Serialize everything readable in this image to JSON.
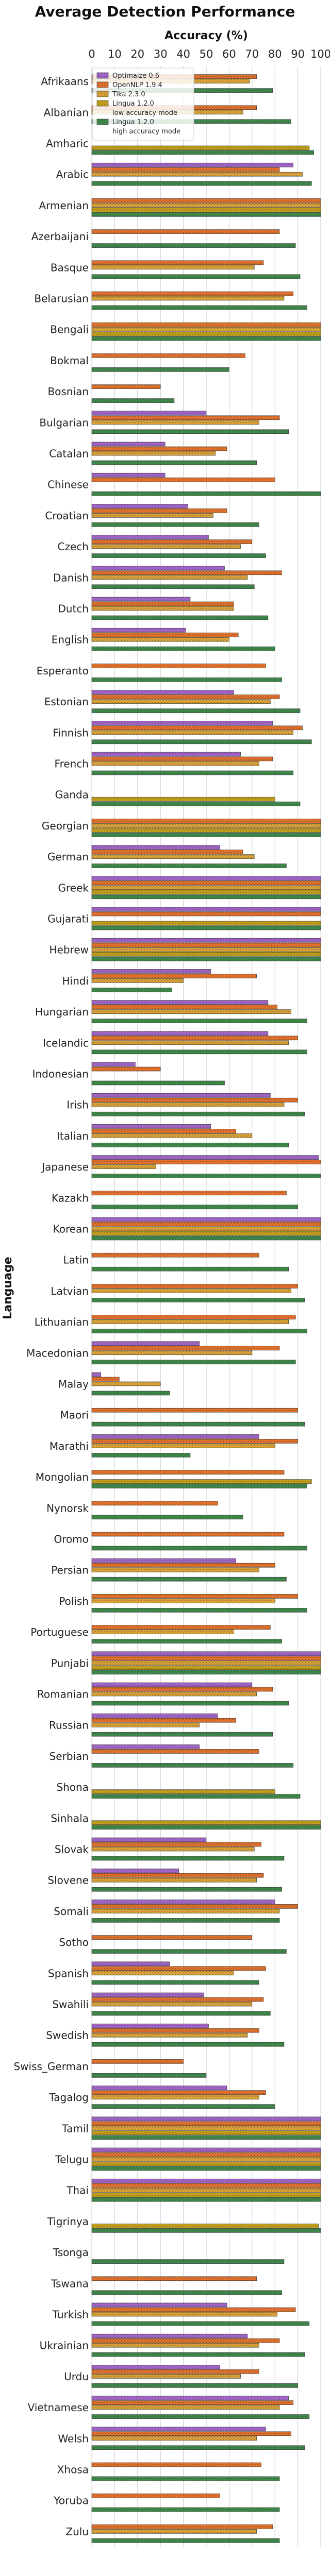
{
  "chart_data": {
    "type": "bar",
    "orientation": "horizontal",
    "title": "Average Detection Performance",
    "xlabel": "Accuracy (%)",
    "ylabel": "Language",
    "xlim": [
      0,
      100
    ],
    "xticks": [
      0,
      10,
      20,
      30,
      40,
      50,
      60,
      70,
      80,
      90,
      100
    ],
    "grid": "vertical",
    "legend_position": "top-left",
    "categories": [
      "Afrikaans",
      "Albanian",
      "Amharic",
      "Arabic",
      "Armenian",
      "Azerbaijani",
      "Basque",
      "Belarusian",
      "Bengali",
      "Bokmal",
      "Bosnian",
      "Bulgarian",
      "Catalan",
      "Chinese",
      "Croatian",
      "Czech",
      "Danish",
      "Dutch",
      "English",
      "Esperanto",
      "Estonian",
      "Finnish",
      "French",
      "Ganda",
      "Georgian",
      "German",
      "Greek",
      "Gujarati",
      "Hebrew",
      "Hindi",
      "Hungarian",
      "Icelandic",
      "Indonesian",
      "Irish",
      "Italian",
      "Japanese",
      "Kazakh",
      "Korean",
      "Latin",
      "Latvian",
      "Lithuanian",
      "Macedonian",
      "Malay",
      "Maori",
      "Marathi",
      "Mongolian",
      "Nynorsk",
      "Oromo",
      "Persian",
      "Polish",
      "Portuguese",
      "Punjabi",
      "Romanian",
      "Russian",
      "Serbian",
      "Shona",
      "Sinhala",
      "Slovak",
      "Slovene",
      "Somali",
      "Sotho",
      "Spanish",
      "Swahili",
      "Swedish",
      "Swiss_German",
      "Tagalog",
      "Tamil",
      "Telugu",
      "Thai",
      "Tigrinya",
      "Tsonga",
      "Tswana",
      "Turkish",
      "Ukrainian",
      "Urdu",
      "Vietnamese",
      "Welsh",
      "Xhosa",
      "Yoruba",
      "Zulu"
    ],
    "series": [
      {
        "name": "Optimaize 0.6",
        "color": "#a566d0",
        "values": [
          null,
          null,
          null,
          88,
          null,
          null,
          null,
          null,
          null,
          null,
          null,
          50,
          32,
          32,
          42,
          51,
          58,
          43,
          41,
          null,
          62,
          79,
          65,
          null,
          null,
          56,
          100,
          100,
          100,
          52,
          77,
          77,
          19,
          78,
          52,
          99,
          null,
          100,
          null,
          null,
          null,
          47,
          4,
          null,
          73,
          null,
          null,
          null,
          63,
          null,
          null,
          100,
          70,
          55,
          47,
          null,
          null,
          50,
          38,
          80,
          null,
          34,
          49,
          51,
          null,
          59,
          100,
          100,
          100,
          null,
          null,
          null,
          59,
          68,
          56,
          86,
          76,
          null,
          null,
          null
        ]
      },
      {
        "name": "OpenNLP 1.9.4",
        "color": "#e8722e",
        "values": [
          72,
          72,
          null,
          82,
          100,
          82,
          75,
          88,
          100,
          67,
          30,
          82,
          59,
          80,
          59,
          70,
          83,
          62,
          64,
          76,
          82,
          92,
          79,
          null,
          100,
          66,
          100,
          100,
          100,
          72,
          81,
          90,
          30,
          90,
          63,
          100,
          85,
          100,
          73,
          90,
          89,
          82,
          12,
          90,
          90,
          84,
          55,
          84,
          80,
          90,
          78,
          100,
          79,
          63,
          73,
          null,
          null,
          74,
          75,
          90,
          70,
          76,
          75,
          73,
          40,
          76,
          100,
          100,
          100,
          null,
          null,
          72,
          89,
          82,
          73,
          88,
          87,
          74,
          56,
          79
        ]
      },
      {
        "name": "Tika 2.3.0",
        "color": "#dfa53b",
        "values": [
          69,
          66,
          null,
          92,
          100,
          null,
          71,
          84,
          100,
          null,
          null,
          73,
          54,
          null,
          53,
          65,
          68,
          62,
          60,
          null,
          78,
          88,
          73,
          null,
          100,
          71,
          100,
          null,
          100,
          40,
          87,
          86,
          null,
          84,
          70,
          28,
          null,
          100,
          null,
          87,
          86,
          70,
          30,
          null,
          80,
          null,
          null,
          null,
          73,
          80,
          62,
          100,
          72,
          47,
          null,
          null,
          null,
          71,
          72,
          82,
          null,
          62,
          70,
          68,
          null,
          73,
          100,
          100,
          100,
          null,
          null,
          null,
          81,
          73,
          65,
          82,
          72,
          null,
          null,
          72
        ]
      },
      {
        "name": "Lingua 1.2.0\nlow accuracy mode",
        "color": "#c9a31d",
        "values": [
          null,
          null,
          95,
          null,
          100,
          null,
          null,
          null,
          100,
          null,
          null,
          null,
          null,
          null,
          null,
          null,
          null,
          null,
          null,
          null,
          null,
          null,
          null,
          80,
          100,
          null,
          100,
          100,
          100,
          null,
          null,
          null,
          null,
          null,
          null,
          null,
          null,
          100,
          null,
          null,
          null,
          null,
          null,
          null,
          null,
          96,
          null,
          null,
          null,
          null,
          null,
          100,
          null,
          null,
          null,
          80,
          100,
          null,
          null,
          null,
          null,
          null,
          null,
          null,
          null,
          null,
          100,
          100,
          100,
          99,
          null,
          null,
          null,
          null,
          null,
          null,
          null,
          null,
          null,
          null
        ]
      },
      {
        "name": "Lingua 1.2.0\nhigh accuracy mode",
        "color": "#3e8a4e",
        "values": [
          79,
          87,
          97,
          96,
          100,
          89,
          91,
          94,
          100,
          60,
          36,
          86,
          72,
          100,
          73,
          76,
          71,
          77,
          80,
          83,
          91,
          96,
          88,
          91,
          100,
          85,
          100,
          100,
          100,
          35,
          94,
          94,
          58,
          93,
          86,
          100,
          90,
          100,
          86,
          93,
          94,
          89,
          34,
          93,
          43,
          94,
          66,
          94,
          85,
          94,
          83,
          100,
          86,
          79,
          88,
          91,
          100,
          84,
          83,
          82,
          85,
          73,
          78,
          84,
          50,
          80,
          100,
          100,
          100,
          100,
          84,
          83,
          95,
          93,
          90,
          95,
          93,
          82,
          82,
          82
        ]
      }
    ]
  }
}
